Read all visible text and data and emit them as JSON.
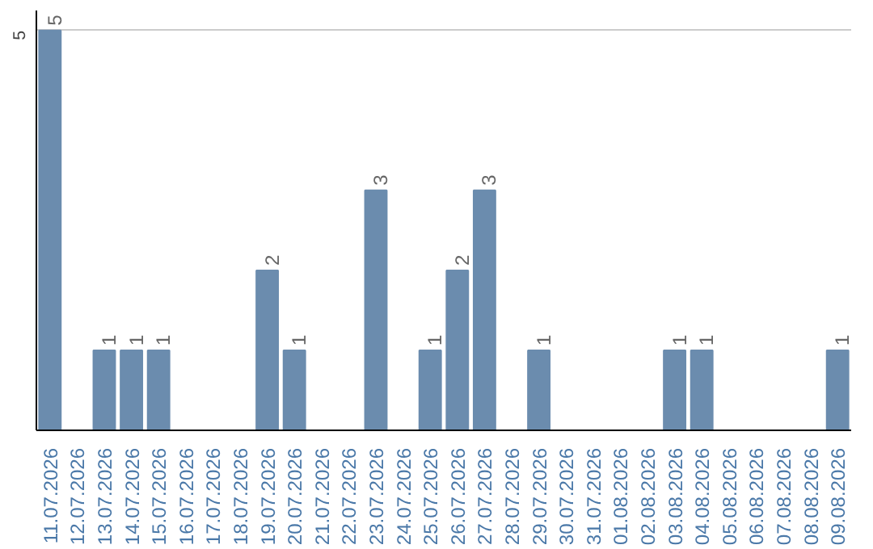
{
  "chart_data": {
    "type": "bar",
    "categories": [
      "11.07.2026",
      "12.07.2026",
      "13.07.2026",
      "14.07.2026",
      "15.07.2026",
      "16.07.2026",
      "17.07.2026",
      "18.07.2026",
      "19.07.2026",
      "20.07.2026",
      "21.07.2026",
      "22.07.2026",
      "23.07.2026",
      "24.07.2026",
      "25.07.2026",
      "26.07.2026",
      "27.07.2026",
      "28.07.2026",
      "29.07.2026",
      "30.07.2026",
      "31.07.2026",
      "01.08.2026",
      "02.08.2026",
      "03.08.2026",
      "04.08.2026",
      "05.08.2026",
      "06.08.2026",
      "07.08.2026",
      "08.08.2026",
      "09.08.2026"
    ],
    "values": [
      5,
      0,
      1,
      1,
      1,
      0,
      0,
      0,
      2,
      1,
      0,
      0,
      3,
      0,
      1,
      2,
      3,
      0,
      1,
      0,
      0,
      0,
      0,
      1,
      1,
      0,
      0,
      0,
      0,
      1
    ],
    "value_labels": [
      "5",
      null,
      "1",
      "1",
      "1",
      null,
      null,
      null,
      "2",
      "1",
      null,
      null,
      "3",
      null,
      "1",
      "2",
      "3",
      null,
      "1",
      null,
      null,
      null,
      null,
      "1",
      "1",
      null,
      null,
      null,
      null,
      "1"
    ],
    "color": "#6b8cae",
    "ylim": [
      0,
      5.25
    ],
    "yticks": [
      5
    ],
    "grid": "y"
  }
}
